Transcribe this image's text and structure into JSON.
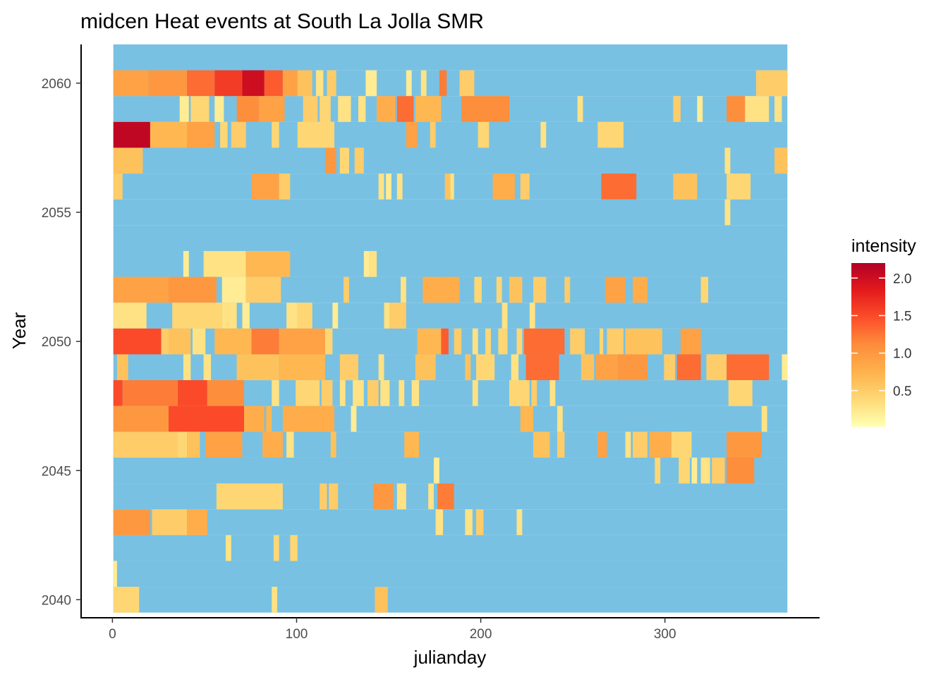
{
  "chart_data": {
    "type": "heatmap",
    "title": "midcen Heat events at South La Jolla SMR",
    "xlabel": "julianday",
    "ylabel": "Year",
    "xlim": [
      -17,
      384
    ],
    "ylim": [
      2039.3,
      2061.5
    ],
    "x_ticks": [
      0,
      100,
      200,
      300
    ],
    "y_ticks": [
      2040,
      2045,
      2050,
      2055,
      2060
    ],
    "x_tick_labels": [
      "0",
      "100",
      "200",
      "300"
    ],
    "y_tick_labels": [
      "2040",
      "2045",
      "2050",
      "2055",
      "2060"
    ],
    "grid": false,
    "background_color": "#78C1E3",
    "legend": {
      "title": "intensity",
      "position": "right",
      "range": [
        0.02,
        2.2
      ],
      "ticks": [
        0.5,
        1.0,
        1.5,
        2.0
      ],
      "tick_labels": [
        "0.5",
        "1.0",
        "1.5",
        "2.0"
      ],
      "colors": [
        "#FFFFB2",
        "#FED976",
        "#FEB24C",
        "#FD8D3C",
        "#FC4E2A",
        "#E31A1C",
        "#B10026"
      ]
    },
    "day_range": [
      1,
      366
    ],
    "events": [
      {
        "year": 2060,
        "segments": [
          [
            1,
            19,
            0.9
          ],
          [
            20,
            40,
            1.0
          ],
          [
            41,
            55,
            1.3
          ],
          [
            56,
            70,
            1.6
          ],
          [
            71,
            82,
            2.0
          ],
          [
            83,
            92,
            1.4
          ],
          [
            93,
            100,
            0.9
          ],
          [
            101,
            108,
            0.6
          ],
          [
            111,
            114,
            0.3
          ],
          [
            117,
            121,
            0.5
          ],
          [
            138,
            143,
            0.2
          ],
          [
            160,
            162,
            0.2
          ],
          [
            168,
            170,
            0.3
          ],
          [
            178,
            181,
            1.2
          ],
          [
            189,
            196,
            0.5
          ],
          [
            350,
            366,
            0.5
          ]
        ]
      },
      {
        "year": 2059,
        "segments": [
          [
            37,
            41,
            0.2
          ],
          [
            43,
            52,
            0.4
          ],
          [
            56,
            60,
            0.2
          ],
          [
            68,
            79,
            1.1
          ],
          [
            80,
            93,
            0.9
          ],
          [
            104,
            111,
            0.5
          ],
          [
            113,
            118,
            0.4
          ],
          [
            123,
            129,
            0.3
          ],
          [
            134,
            137,
            0.3
          ],
          [
            144,
            153,
            0.8
          ],
          [
            155,
            163,
            1.3
          ],
          [
            165,
            178,
            0.7
          ],
          [
            190,
            215,
            1.1
          ],
          [
            253,
            255,
            0.3
          ],
          [
            305,
            308,
            0.5
          ],
          [
            318,
            320,
            0.2
          ],
          [
            334,
            343,
            1.1
          ],
          [
            344,
            356,
            0.3
          ],
          [
            360,
            363,
            0.3
          ]
        ]
      },
      {
        "year": 2058,
        "segments": [
          [
            1,
            20,
            2.1
          ],
          [
            21,
            40,
            0.7
          ],
          [
            41,
            55,
            0.9
          ],
          [
            59,
            62,
            0.4
          ],
          [
            65,
            72,
            0.5
          ],
          [
            87,
            90,
            0.4
          ],
          [
            101,
            120,
            0.4
          ],
          [
            160,
            165,
            0.9
          ],
          [
            173,
            175,
            0.5
          ],
          [
            199,
            204,
            0.4
          ],
          [
            233,
            235,
            0.3
          ],
          [
            264,
            277,
            0.4
          ]
        ]
      },
      {
        "year": 2057,
        "segments": [
          [
            1,
            16,
            0.6
          ],
          [
            116,
            121,
            1.0
          ],
          [
            124,
            128,
            0.4
          ],
          [
            132,
            136,
            0.5
          ],
          [
            333,
            335,
            0.3
          ],
          [
            360,
            366,
            0.6
          ]
        ]
      },
      {
        "year": 2056,
        "segments": [
          [
            1,
            5,
            0.5
          ],
          [
            76,
            90,
            0.9
          ],
          [
            91,
            96,
            0.5
          ],
          [
            145,
            147,
            0.3
          ],
          [
            149,
            151,
            0.2
          ],
          [
            155,
            157,
            0.3
          ],
          [
            181,
            183,
            0.6
          ],
          [
            184,
            185,
            0.3
          ],
          [
            207,
            218,
            0.8
          ],
          [
            222,
            226,
            0.5
          ],
          [
            266,
            284,
            1.3
          ],
          [
            305,
            317,
            0.6
          ],
          [
            334,
            346,
            0.4
          ]
        ]
      },
      {
        "year": 2055,
        "segments": [
          [
            333,
            335,
            0.3
          ]
        ]
      },
      {
        "year": 2053,
        "segments": [
          [
            39,
            41,
            0.2
          ],
          [
            50,
            72,
            0.3
          ],
          [
            73,
            96,
            0.7
          ],
          [
            137,
            139,
            0.2
          ],
          [
            140,
            143,
            0.3
          ]
        ]
      },
      {
        "year": 2052,
        "segments": [
          [
            1,
            30,
            0.9
          ],
          [
            31,
            56,
            1.0
          ],
          [
            60,
            72,
            0.2
          ],
          [
            73,
            91,
            0.5
          ],
          [
            126,
            128,
            0.5
          ],
          [
            157,
            159,
            0.3
          ],
          [
            169,
            178,
            0.8
          ],
          [
            179,
            188,
            0.8
          ],
          [
            197,
            200,
            0.4
          ],
          [
            209,
            211,
            0.4
          ],
          [
            216,
            222,
            0.6
          ],
          [
            229,
            235,
            0.5
          ],
          [
            246,
            248,
            0.5
          ],
          [
            268,
            278,
            0.9
          ],
          [
            283,
            290,
            0.8
          ],
          [
            320,
            323,
            0.4
          ]
        ]
      },
      {
        "year": 2051,
        "segments": [
          [
            1,
            18,
            0.3
          ],
          [
            33,
            59,
            0.4
          ],
          [
            60,
            62,
            0.3
          ],
          [
            63,
            67,
            0.3
          ],
          [
            71,
            74,
            0.2
          ],
          [
            95,
            100,
            0.3
          ],
          [
            101,
            108,
            0.4
          ],
          [
            120,
            122,
            0.2
          ],
          [
            148,
            150,
            0.3
          ],
          [
            151,
            159,
            0.5
          ],
          [
            212,
            214,
            0.3
          ],
          [
            227,
            229,
            0.3
          ]
        ]
      },
      {
        "year": 2050,
        "segments": [
          [
            1,
            26,
            1.5
          ],
          [
            27,
            30,
            0.5
          ],
          [
            31,
            42,
            0.6
          ],
          [
            44,
            50,
            0.3
          ],
          [
            56,
            75,
            0.7
          ],
          [
            76,
            90,
            1.2
          ],
          [
            91,
            115,
            0.9
          ],
          [
            116,
            119,
            0.4
          ],
          [
            166,
            178,
            0.7
          ],
          [
            179,
            182,
            1.4
          ],
          [
            186,
            189,
            0.5
          ],
          [
            196,
            198,
            0.3
          ],
          [
            203,
            205,
            0.4
          ],
          [
            210,
            214,
            0.4
          ],
          [
            220,
            222,
            0.4
          ],
          [
            224,
            245,
            1.3
          ],
          [
            249,
            256,
            0.5
          ],
          [
            265,
            266,
            0.4
          ],
          [
            269,
            277,
            0.5
          ],
          [
            279,
            298,
            0.6
          ],
          [
            309,
            319,
            0.9
          ]
        ]
      },
      {
        "year": 2049,
        "segments": [
          [
            3,
            8,
            0.6
          ],
          [
            39,
            42,
            0.3
          ],
          [
            50,
            53,
            0.3
          ],
          [
            68,
            90,
            0.6
          ],
          [
            91,
            115,
            0.7
          ],
          [
            124,
            133,
            0.5
          ],
          [
            145,
            147,
            0.3
          ],
          [
            165,
            175,
            0.6
          ],
          [
            192,
            194,
            0.6
          ],
          [
            198,
            207,
            0.4
          ],
          [
            217,
            220,
            0.3
          ],
          [
            225,
            242,
            1.3
          ],
          [
            255,
            261,
            0.6
          ],
          [
            263,
            274,
            0.9
          ],
          [
            275,
            290,
            1.0
          ],
          [
            300,
            305,
            0.5
          ],
          [
            307,
            319,
            1.3
          ],
          [
            323,
            333,
            0.5
          ],
          [
            334,
            356,
            1.3
          ],
          [
            364,
            366,
            0.2
          ]
        ]
      },
      {
        "year": 2048,
        "segments": [
          [
            1,
            5,
            1.5
          ],
          [
            6,
            35,
            1.2
          ],
          [
            36,
            51,
            1.5
          ],
          [
            52,
            71,
            1.1
          ],
          [
            87,
            90,
            0.3
          ],
          [
            100,
            112,
            0.4
          ],
          [
            114,
            119,
            0.5
          ],
          [
            124,
            126,
            0.3
          ],
          [
            131,
            136,
            0.3
          ],
          [
            139,
            144,
            0.5
          ],
          [
            146,
            150,
            0.3
          ],
          [
            156,
            158,
            0.3
          ],
          [
            163,
            166,
            0.3
          ],
          [
            196,
            198,
            0.3
          ],
          [
            216,
            226,
            0.4
          ],
          [
            228,
            230,
            0.5
          ],
          [
            238,
            240,
            0.3
          ],
          [
            335,
            347,
            0.4
          ]
        ]
      },
      {
        "year": 2047,
        "segments": [
          [
            1,
            30,
            1.0
          ],
          [
            31,
            71,
            1.5
          ],
          [
            72,
            82,
            0.8
          ],
          [
            84,
            86,
            0.7
          ],
          [
            93,
            120,
            0.8
          ],
          [
            130,
            132,
            0.2
          ],
          [
            222,
            228,
            0.7
          ],
          [
            242,
            244,
            0.3
          ],
          [
            353,
            355,
            0.3
          ]
        ]
      },
      {
        "year": 2046,
        "segments": [
          [
            1,
            35,
            0.5
          ],
          [
            36,
            40,
            0.4
          ],
          [
            41,
            47,
            0.6
          ],
          [
            51,
            70,
            0.9
          ],
          [
            82,
            92,
            0.8
          ],
          [
            95,
            98,
            0.3
          ],
          [
            119,
            121,
            0.6
          ],
          [
            159,
            166,
            0.7
          ],
          [
            229,
            237,
            0.6
          ],
          [
            242,
            245,
            0.5
          ],
          [
            264,
            268,
            0.9
          ],
          [
            279,
            281,
            0.3
          ],
          [
            283,
            290,
            0.5
          ],
          [
            292,
            303,
            0.8
          ],
          [
            304,
            314,
            0.4
          ],
          [
            334,
            352,
            1.0
          ]
        ]
      },
      {
        "year": 2045,
        "segments": [
          [
            175,
            177,
            0.2
          ],
          [
            295,
            297,
            0.4
          ],
          [
            308,
            313,
            0.4
          ],
          [
            315,
            317,
            0.2
          ],
          [
            320,
            324,
            0.3
          ],
          [
            326,
            332,
            0.5
          ],
          [
            334,
            348,
            1.1
          ]
        ]
      },
      {
        "year": 2044,
        "segments": [
          [
            57,
            92,
            0.4
          ],
          [
            113,
            116,
            0.5
          ],
          [
            118,
            122,
            0.5
          ],
          [
            142,
            152,
            1.0
          ],
          [
            155,
            159,
            0.3
          ],
          [
            172,
            174,
            0.3
          ],
          [
            177,
            185,
            1.2
          ]
        ]
      },
      {
        "year": 2043,
        "segments": [
          [
            1,
            20,
            1.0
          ],
          [
            22,
            40,
            0.5
          ],
          [
            41,
            51,
            0.8
          ],
          [
            176,
            179,
            0.3
          ],
          [
            192,
            195,
            0.3
          ],
          [
            198,
            201,
            0.5
          ],
          [
            220,
            222,
            0.3
          ]
        ]
      },
      {
        "year": 2042,
        "segments": [
          [
            62,
            64,
            0.3
          ],
          [
            88,
            90,
            0.4
          ],
          [
            97,
            100,
            0.4
          ]
        ]
      },
      {
        "year": 2041,
        "segments": [
          [
            1,
            2,
            0.2
          ]
        ]
      },
      {
        "year": 2040,
        "segments": [
          [
            1,
            14,
            0.4
          ],
          [
            87,
            89,
            0.3
          ],
          [
            143,
            149,
            0.6
          ]
        ]
      }
    ]
  }
}
